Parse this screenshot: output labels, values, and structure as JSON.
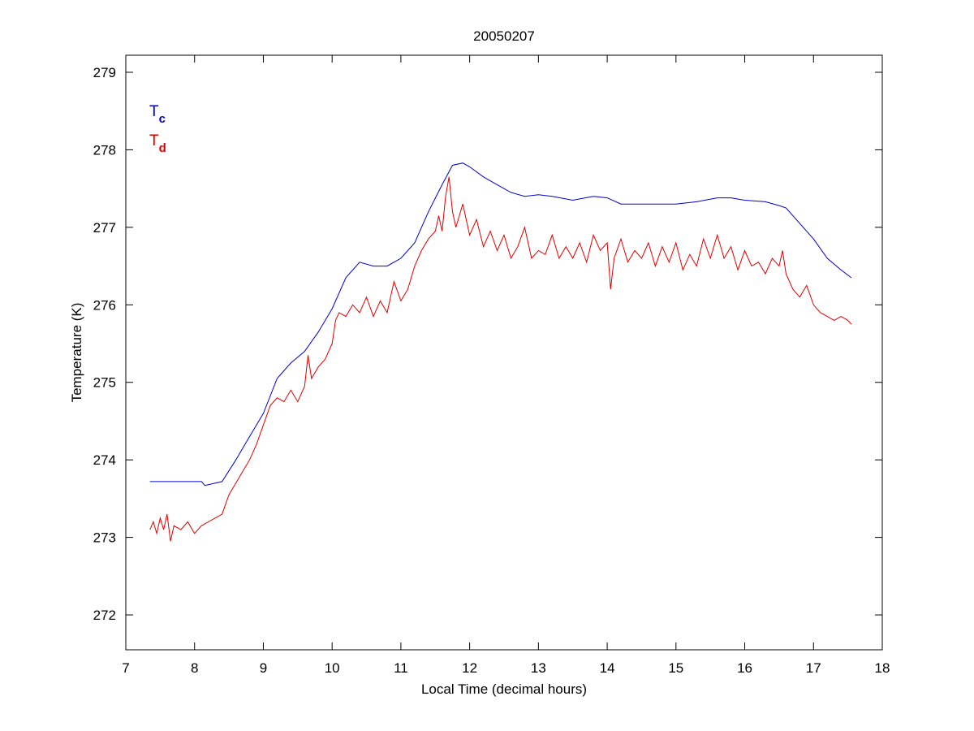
{
  "chart_data": {
    "type": "line",
    "title": "20050207",
    "xlabel": "Local Time (decimal hours)",
    "ylabel": "Temperature (K)",
    "xlim": [
      7,
      18
    ],
    "ylim": [
      271.55,
      279.22
    ],
    "xticks": [
      7,
      8,
      9,
      10,
      11,
      12,
      13,
      14,
      15,
      16,
      17,
      18
    ],
    "yticks": [
      272,
      273,
      274,
      275,
      276,
      277,
      278,
      279
    ],
    "grid": false,
    "legend_placement": "top-left",
    "series": [
      {
        "name": "Tc",
        "label_main": "T",
        "label_sub": "c",
        "color": "#0000cc",
        "x": [
          7.35,
          8.1,
          8.15,
          8.4,
          8.6,
          8.8,
          9.0,
          9.2,
          9.4,
          9.6,
          9.8,
          10.0,
          10.2,
          10.4,
          10.6,
          10.8,
          11.0,
          11.2,
          11.4,
          11.6,
          11.75,
          11.9,
          12.0,
          12.2,
          12.4,
          12.6,
          12.8,
          13.0,
          13.2,
          13.5,
          13.8,
          14.0,
          14.2,
          14.5,
          14.8,
          15.0,
          15.3,
          15.6,
          15.8,
          16.0,
          16.3,
          16.5,
          16.6,
          16.8,
          17.0,
          17.2,
          17.4,
          17.55
        ],
        "y": [
          273.72,
          273.72,
          273.67,
          273.72,
          274.0,
          274.3,
          274.6,
          275.05,
          275.25,
          275.4,
          275.65,
          275.95,
          276.35,
          276.55,
          276.5,
          276.5,
          276.6,
          276.8,
          277.2,
          277.55,
          277.8,
          277.83,
          277.78,
          277.65,
          277.55,
          277.45,
          277.4,
          277.42,
          277.4,
          277.35,
          277.4,
          277.38,
          277.3,
          277.3,
          277.3,
          277.3,
          277.33,
          277.38,
          277.38,
          277.35,
          277.33,
          277.28,
          277.25,
          277.05,
          276.85,
          276.6,
          276.45,
          276.35
        ]
      },
      {
        "name": "Td",
        "label_main": "T",
        "label_sub": "d",
        "color": "#dd0000",
        "x": [
          7.35,
          7.4,
          7.45,
          7.5,
          7.55,
          7.6,
          7.65,
          7.7,
          7.8,
          7.9,
          8.0,
          8.1,
          8.2,
          8.3,
          8.4,
          8.5,
          8.6,
          8.7,
          8.8,
          8.9,
          9.0,
          9.1,
          9.2,
          9.3,
          9.4,
          9.5,
          9.6,
          9.65,
          9.7,
          9.8,
          9.9,
          10.0,
          10.05,
          10.1,
          10.2,
          10.3,
          10.4,
          10.5,
          10.6,
          10.7,
          10.8,
          10.9,
          11.0,
          11.1,
          11.2,
          11.3,
          11.4,
          11.5,
          11.55,
          11.6,
          11.65,
          11.7,
          11.75,
          11.8,
          11.9,
          12.0,
          12.1,
          12.2,
          12.3,
          12.4,
          12.5,
          12.6,
          12.7,
          12.8,
          12.9,
          13.0,
          13.1,
          13.2,
          13.3,
          13.4,
          13.5,
          13.6,
          13.7,
          13.8,
          13.9,
          14.0,
          14.05,
          14.1,
          14.2,
          14.3,
          14.4,
          14.5,
          14.6,
          14.7,
          14.8,
          14.9,
          15.0,
          15.1,
          15.2,
          15.3,
          15.4,
          15.5,
          15.6,
          15.7,
          15.8,
          15.9,
          16.0,
          16.1,
          16.2,
          16.3,
          16.4,
          16.5,
          16.55,
          16.6,
          16.7,
          16.8,
          16.9,
          17.0,
          17.1,
          17.2,
          17.3,
          17.4,
          17.5,
          17.55
        ],
        "y": [
          273.1,
          273.2,
          273.05,
          273.25,
          273.1,
          273.3,
          272.95,
          273.15,
          273.1,
          273.2,
          273.05,
          273.15,
          273.2,
          273.25,
          273.3,
          273.55,
          273.7,
          273.85,
          274.0,
          274.2,
          274.45,
          274.7,
          274.8,
          274.75,
          274.9,
          274.75,
          274.95,
          275.35,
          275.05,
          275.2,
          275.3,
          275.5,
          275.8,
          275.9,
          275.85,
          276.0,
          275.9,
          276.1,
          275.85,
          276.05,
          275.9,
          276.3,
          276.05,
          276.2,
          276.5,
          276.7,
          276.85,
          276.95,
          277.15,
          276.95,
          277.4,
          277.65,
          277.2,
          277.0,
          277.3,
          276.9,
          277.1,
          276.75,
          276.95,
          276.7,
          276.9,
          276.6,
          276.75,
          277.0,
          276.6,
          276.7,
          276.65,
          276.9,
          276.6,
          276.75,
          276.6,
          276.8,
          276.55,
          276.9,
          276.7,
          276.8,
          276.2,
          276.6,
          276.85,
          276.55,
          276.7,
          276.6,
          276.8,
          276.5,
          276.75,
          276.55,
          276.8,
          276.45,
          276.65,
          276.5,
          276.85,
          276.6,
          276.9,
          276.6,
          276.75,
          276.45,
          276.7,
          276.5,
          276.55,
          276.4,
          276.6,
          276.5,
          276.7,
          276.4,
          276.2,
          276.1,
          276.25,
          276.0,
          275.9,
          275.85,
          275.8,
          275.85,
          275.8,
          275.75
        ]
      }
    ]
  }
}
